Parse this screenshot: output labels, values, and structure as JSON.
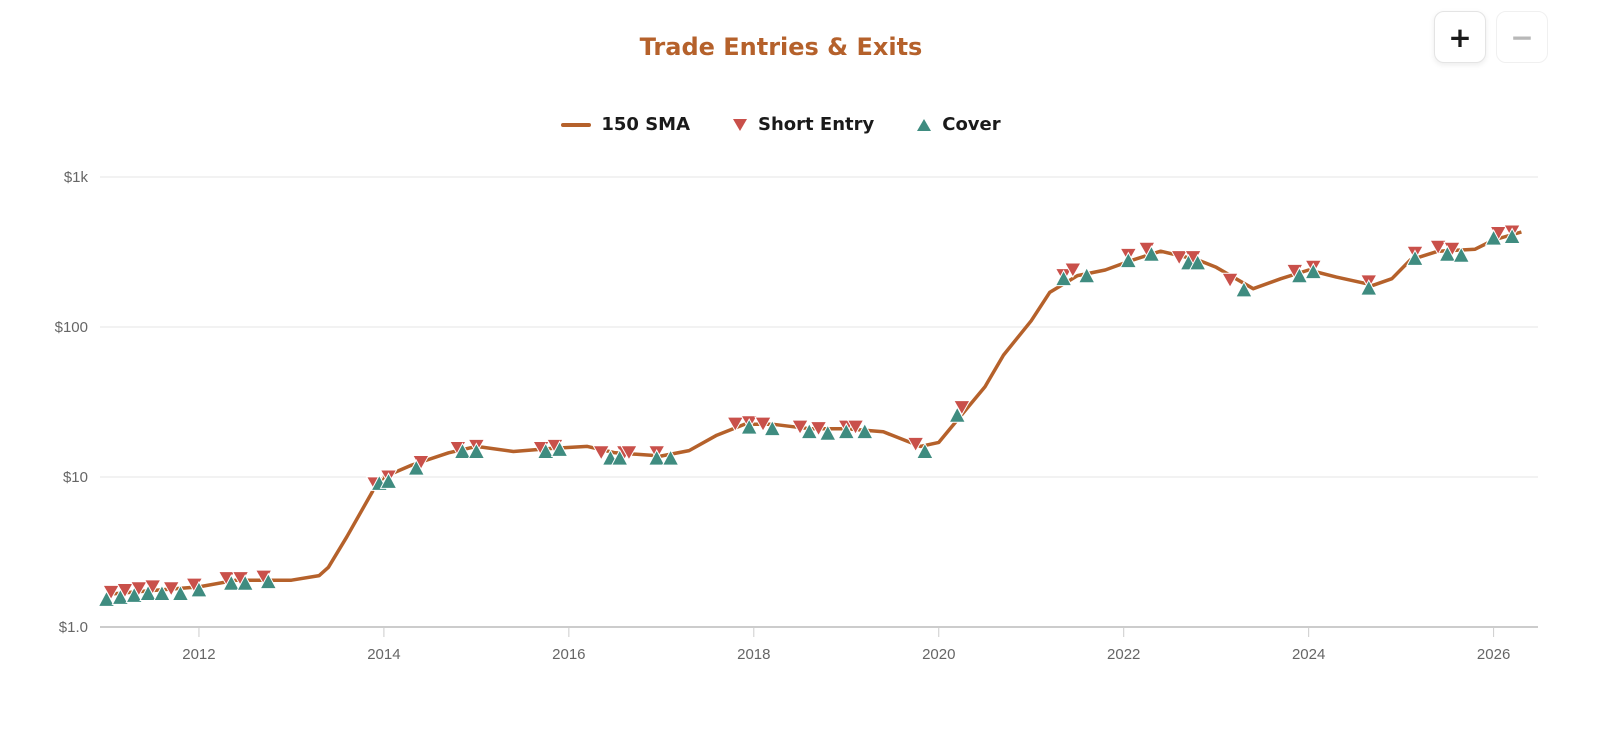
{
  "chart_data": {
    "type": "line",
    "title": "Trade Entries & Exits",
    "legend_position": "top-center",
    "grid": true,
    "y_scale": "log",
    "ylim": [
      1,
      1000
    ],
    "xlim": [
      2010.93,
      2026.48
    ],
    "y_ticks": [
      {
        "value": 1,
        "label": "$1.0"
      },
      {
        "value": 10,
        "label": "$10"
      },
      {
        "value": 100,
        "label": "$100"
      },
      {
        "value": 1000,
        "label": "$1k"
      }
    ],
    "x_ticks": [
      "2012",
      "2014",
      "2016",
      "2018",
      "2020",
      "2022",
      "2024",
      "2026"
    ],
    "colors": {
      "title": "#b5612b",
      "sma": "#b5612b",
      "short": "#c9504a",
      "cover": "#3f8c80",
      "grid": "#e6e6e6"
    },
    "series": [
      {
        "name": "150 SMA",
        "kind": "line",
        "points": [
          [
            2011.0,
            1.65
          ],
          [
            2011.5,
            1.75
          ],
          [
            2012.0,
            1.85
          ],
          [
            2012.4,
            2.05
          ],
          [
            2012.8,
            2.05
          ],
          [
            2013.0,
            2.05
          ],
          [
            2013.3,
            2.2
          ],
          [
            2013.4,
            2.5
          ],
          [
            2013.6,
            4.0
          ],
          [
            2013.9,
            8.5
          ],
          [
            2014.0,
            10
          ],
          [
            2014.3,
            12
          ],
          [
            2014.7,
            14.5
          ],
          [
            2015.0,
            16
          ],
          [
            2015.4,
            14.8
          ],
          [
            2015.8,
            15.5
          ],
          [
            2016.2,
            16
          ],
          [
            2016.5,
            14.5
          ],
          [
            2017.0,
            13.8
          ],
          [
            2017.3,
            15
          ],
          [
            2017.6,
            19
          ],
          [
            2017.9,
            22.5
          ],
          [
            2018.2,
            22.5
          ],
          [
            2018.6,
            21
          ],
          [
            2019.0,
            21
          ],
          [
            2019.4,
            20
          ],
          [
            2019.8,
            16
          ],
          [
            2020.0,
            17
          ],
          [
            2020.2,
            24
          ],
          [
            2020.5,
            40
          ],
          [
            2020.7,
            65
          ],
          [
            2021.0,
            110
          ],
          [
            2021.2,
            170
          ],
          [
            2021.5,
            220
          ],
          [
            2021.8,
            240
          ],
          [
            2022.1,
            280
          ],
          [
            2022.4,
            320
          ],
          [
            2022.8,
            280
          ],
          [
            2023.0,
            250
          ],
          [
            2023.4,
            180
          ],
          [
            2023.7,
            210
          ],
          [
            2024.0,
            240
          ],
          [
            2024.3,
            215
          ],
          [
            2024.7,
            190
          ],
          [
            2024.9,
            210
          ],
          [
            2025.1,
            280
          ],
          [
            2025.4,
            320
          ],
          [
            2025.8,
            330
          ],
          [
            2026.0,
            380
          ],
          [
            2026.3,
            430
          ]
        ]
      },
      {
        "name": "Short Entry",
        "kind": "marker-down",
        "points": [
          [
            2011.05,
            1.7
          ],
          [
            2011.2,
            1.75
          ],
          [
            2011.35,
            1.8
          ],
          [
            2011.5,
            1.85
          ],
          [
            2011.7,
            1.8
          ],
          [
            2011.95,
            1.9
          ],
          [
            2012.3,
            2.1
          ],
          [
            2012.45,
            2.1
          ],
          [
            2012.7,
            2.15
          ],
          [
            2013.9,
            9
          ],
          [
            2014.05,
            10
          ],
          [
            2014.4,
            12.5
          ],
          [
            2014.8,
            15.5
          ],
          [
            2015.0,
            16
          ],
          [
            2015.7,
            15.5
          ],
          [
            2015.85,
            16
          ],
          [
            2016.35,
            14.5
          ],
          [
            2016.6,
            14.5
          ],
          [
            2016.65,
            14.5
          ],
          [
            2016.95,
            14.5
          ],
          [
            2017.8,
            22.5
          ],
          [
            2017.95,
            23
          ],
          [
            2018.1,
            22.5
          ],
          [
            2018.5,
            21.5
          ],
          [
            2018.7,
            21
          ],
          [
            2019.0,
            21.5
          ],
          [
            2019.1,
            21.5
          ],
          [
            2019.75,
            16.5
          ],
          [
            2020.25,
            29
          ],
          [
            2021.35,
            220
          ],
          [
            2021.45,
            240
          ],
          [
            2022.05,
            300
          ],
          [
            2022.25,
            330
          ],
          [
            2022.6,
            290
          ],
          [
            2022.75,
            290
          ],
          [
            2023.15,
            205
          ],
          [
            2023.85,
            235
          ],
          [
            2024.05,
            250
          ],
          [
            2024.65,
            200
          ],
          [
            2025.15,
            310
          ],
          [
            2025.4,
            340
          ],
          [
            2025.55,
            330
          ],
          [
            2026.05,
            420
          ],
          [
            2026.2,
            430
          ]
        ]
      },
      {
        "name": "Cover",
        "kind": "marker-up",
        "points": [
          [
            2011.0,
            1.6
          ],
          [
            2011.15,
            1.65
          ],
          [
            2011.3,
            1.7
          ],
          [
            2011.45,
            1.75
          ],
          [
            2011.6,
            1.75
          ],
          [
            2011.8,
            1.75
          ],
          [
            2012.0,
            1.85
          ],
          [
            2012.35,
            2.05
          ],
          [
            2012.5,
            2.05
          ],
          [
            2012.75,
            2.1
          ],
          [
            2013.95,
            9.5
          ],
          [
            2014.05,
            9.8
          ],
          [
            2014.35,
            12
          ],
          [
            2014.85,
            15.5
          ],
          [
            2015.0,
            15.5
          ],
          [
            2015.75,
            15.5
          ],
          [
            2015.9,
            16
          ],
          [
            2016.45,
            14
          ],
          [
            2016.55,
            14
          ],
          [
            2016.95,
            14
          ],
          [
            2017.1,
            14
          ],
          [
            2017.95,
            22.5
          ],
          [
            2018.2,
            22
          ],
          [
            2018.6,
            21
          ],
          [
            2018.8,
            20.5
          ],
          [
            2019.0,
            21
          ],
          [
            2019.2,
            21
          ],
          [
            2019.85,
            15.5
          ],
          [
            2020.2,
            27
          ],
          [
            2021.35,
            220
          ],
          [
            2021.6,
            230
          ],
          [
            2022.05,
            290
          ],
          [
            2022.3,
            320
          ],
          [
            2022.7,
            280
          ],
          [
            2022.8,
            280
          ],
          [
            2023.3,
            185
          ],
          [
            2023.9,
            230
          ],
          [
            2024.05,
            245
          ],
          [
            2024.65,
            190
          ],
          [
            2025.15,
            300
          ],
          [
            2025.5,
            320
          ],
          [
            2025.65,
            315
          ],
          [
            2026.0,
            410
          ],
          [
            2026.2,
            420
          ]
        ]
      }
    ]
  },
  "controls": {
    "zoom_in": "+",
    "zoom_out": "−"
  }
}
